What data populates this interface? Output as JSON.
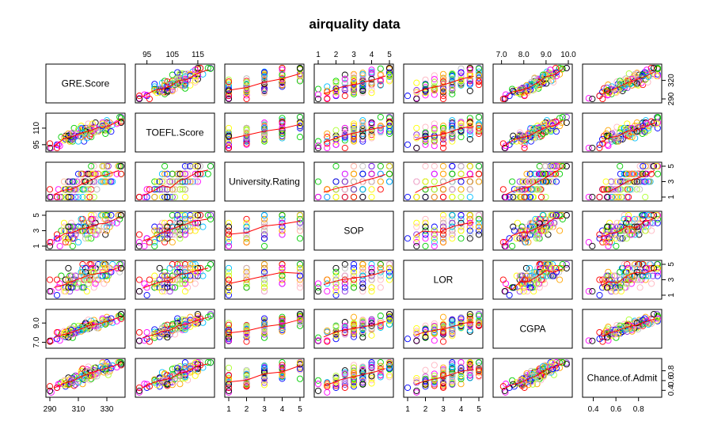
{
  "chart_data": {
    "type": "scatter",
    "title": "airquality data",
    "variables": [
      {
        "name": "GRE.Score",
        "range": [
          290,
          340
        ],
        "ticks": [
          290,
          310,
          330
        ],
        "tick_labels": [
          "290",
          "310",
          "330"
        ]
      },
      {
        "name": "TOEFL.Score",
        "range": [
          92,
          120
        ],
        "ticks": [
          95,
          105,
          115
        ],
        "tick_labels": [
          "95",
          "105",
          "115"
        ],
        "left_ticks": [
          95,
          110
        ],
        "left_tick_labels": [
          "95",
          "110"
        ]
      },
      {
        "name": "University.Rating",
        "range": [
          1,
          5
        ],
        "ticks": [
          1,
          2,
          3,
          4,
          5
        ],
        "tick_labels": [
          "1",
          "2",
          "3",
          "4",
          "5"
        ],
        "right_ticks": [
          1,
          3,
          5
        ],
        "right_tick_labels": [
          "1",
          "3",
          "5"
        ]
      },
      {
        "name": "SOP",
        "range": [
          1,
          5
        ],
        "ticks": [
          1,
          2,
          3,
          4,
          5
        ],
        "tick_labels": [
          "1",
          "2",
          "3",
          "4",
          "5"
        ],
        "left_ticks": [
          1,
          3,
          5
        ],
        "left_tick_labels": [
          "1",
          "3",
          "5"
        ]
      },
      {
        "name": "LOR",
        "range": [
          1,
          5
        ],
        "ticks": [
          1,
          2,
          3,
          4,
          5
        ],
        "tick_labels": [
          "1",
          "2",
          "3",
          "4",
          "5"
        ],
        "right_ticks": [
          1,
          3,
          5
        ],
        "right_tick_labels": [
          "1",
          "3",
          "5"
        ]
      },
      {
        "name": "CGPA",
        "range": [
          6.8,
          10
        ],
        "ticks": [
          7,
          8,
          9,
          10
        ],
        "tick_labels": [
          "7.0",
          "8.0",
          "9.0",
          "10.0"
        ],
        "left_ticks": [
          7,
          9
        ],
        "left_tick_labels": [
          "7.0",
          "9.0"
        ]
      },
      {
        "name": "Chance.of.Admit",
        "range": [
          0.34,
          0.97
        ],
        "ticks": [
          0.4,
          0.6,
          0.8
        ],
        "tick_labels": [
          "0.4",
          "0.6",
          "0.8"
        ],
        "right_ticks": [
          0.4,
          0.6,
          0.8
        ],
        "right_tick_labels": [
          "0.4",
          "0.6",
          "0.8"
        ],
        "x_ticks": [
          0.4,
          0.6,
          0.8
        ],
        "x_tick_labels": [
          "0.4",
          "0.6",
          "0.8"
        ]
      }
    ],
    "gre_right_ticks": [
      290,
      320
    ],
    "gre_right_tick_labels": [
      "290",
      "320"
    ],
    "point_colors": [
      "#000000",
      "#ff0000",
      "#00cd00",
      "#0000ff",
      "#00bfff",
      "#ff00ff",
      "#ffff00",
      "#c0c0c0",
      "#ffa500",
      "#ffb6c1",
      "#8a2be2",
      "#adff2f"
    ],
    "smoother_color": "#ff0000",
    "n_points": 130,
    "grid": false,
    "legend": "none"
  }
}
